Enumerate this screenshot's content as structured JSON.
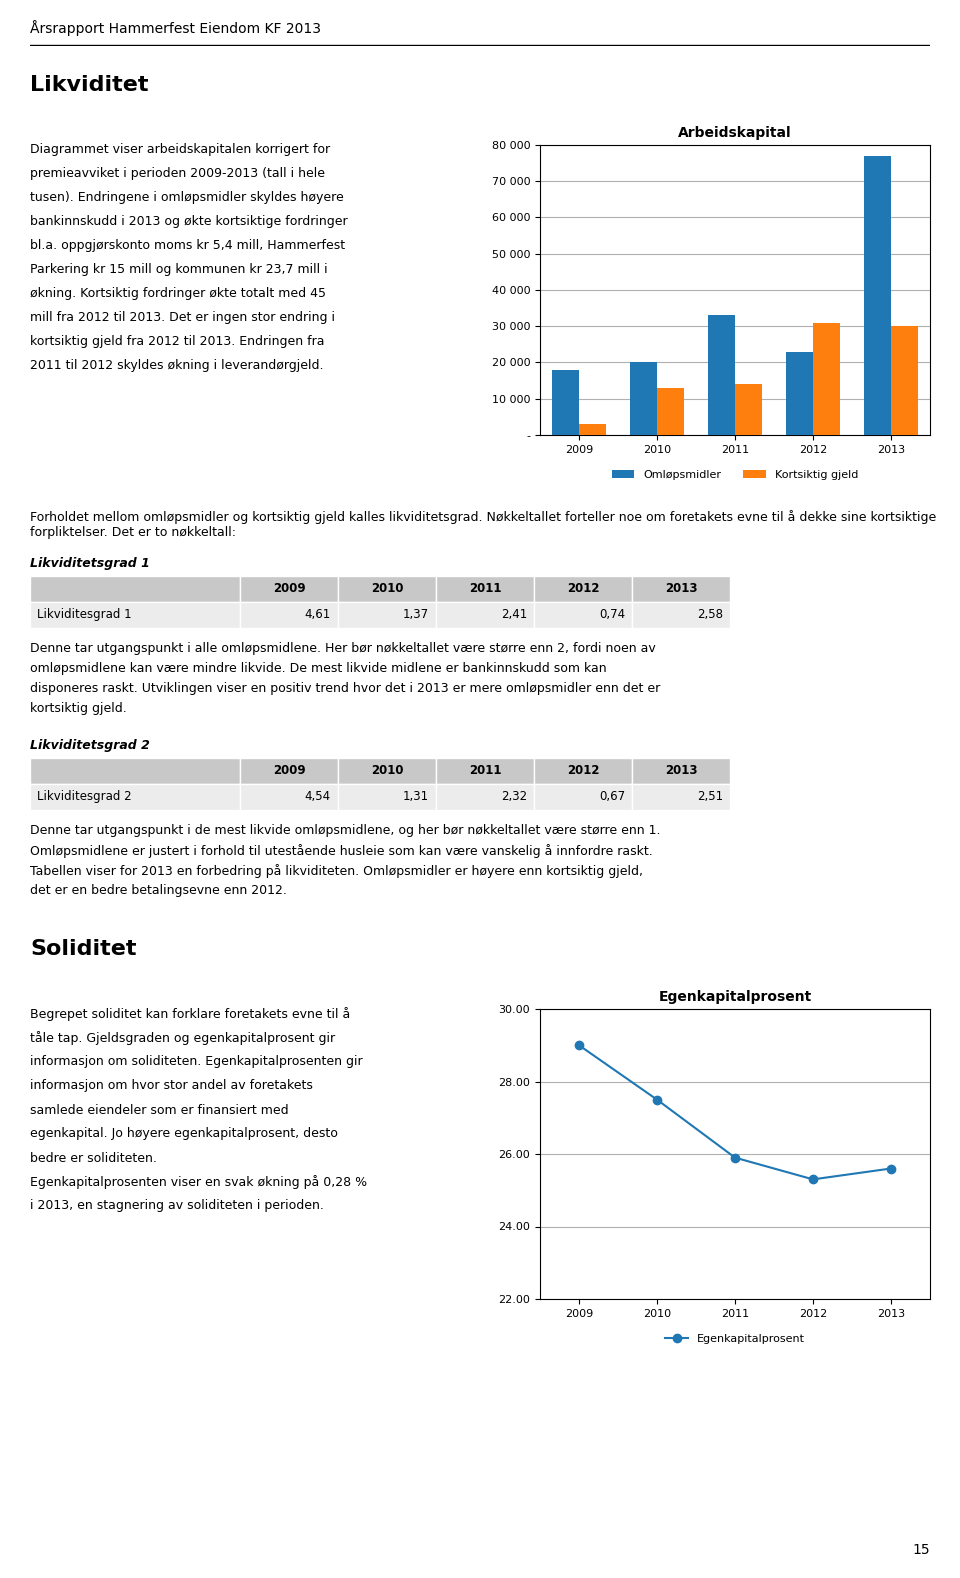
{
  "page_title": "Årsrapport Hammerfest Eiendom KF 2013",
  "page_number": "15",
  "chart_data": [
    {
      "type": "bar",
      "section": "Likviditet",
      "text": [
        "Diagrammet viser arbeidskapitalen korrigert for",
        "premieavviket i perioden 2009-2013 (tall i hele",
        "tusen). Endringene i omløpsmidler skyldes høyere",
        "bankinnskudd i 2013 og økte kortsiktige fordringer",
        "bl.a. oppgjørskonto moms kr 5,4 mill, Hammerfest",
        "Parkering kr 15 mill og kommunen kr 23,7 mill i",
        "økning. Kortsiktig fordringer økte totalt med 45",
        "mill fra 2012 til 2013. Det er ingen stor endring i",
        "kortsiktig gjeld fra 2012 til 2013. Endringen fra",
        "2011 til 2012 skyldes økning i leverandørgjeld."
      ],
      "title": "Arbeidskapital",
      "categories": [
        "2009",
        "2010",
        "2011",
        "2012",
        "2013"
      ],
      "series": [
        {
          "name": "Omløpsmidler",
          "values": [
            18000,
            20000,
            33000,
            23000,
            77000
          ]
        },
        {
          "name": "Kortsiktig gjeld",
          "values": [
            3000,
            13000,
            14000,
            31000,
            30000
          ]
        }
      ],
      "ylim": [
        0,
        80000
      ],
      "yticks": [
        {
          "value": 0,
          "label": "-"
        },
        {
          "value": 10000,
          "label": "10 000"
        },
        {
          "value": 20000,
          "label": "20 000"
        },
        {
          "value": 30000,
          "label": "30 000"
        },
        {
          "value": 40000,
          "label": "40 000"
        },
        {
          "value": 50000,
          "label": "50 000"
        },
        {
          "value": 60000,
          "label": "60 000"
        },
        {
          "value": 70000,
          "label": "70 000"
        },
        {
          "value": 80000,
          "label": "80 000"
        }
      ],
      "grid": true,
      "legend": "lower center",
      "annotations": [
        "Forholdet mellom omløpsmidler og kortsiktig gjeld kalles likviditetsgrad. Nøkkeltallet forteller noe om foretakets evne til å dekke sine kortsiktige forpliktelser. Det er to nøkkeltall:"
      ]
    },
    {
      "type": "table",
      "title": "Likviditetsgrad 1",
      "columns": [
        "",
        "2009",
        "2010",
        "2011",
        "2012",
        "2013"
      ],
      "rows": [
        [
          "Likviditesgrad 1",
          "4,61",
          "1,37",
          "2,41",
          "0,74",
          "2,58"
        ]
      ],
      "annotations": [
        "Denne tar utgangspunkt i alle omløpsmidlene. Her bør nøkkeltallet være større enn 2, fordi noen av",
        "omløpsmidlene kan være mindre likvide. De mest likvide midlene er bankinnskudd som kan",
        "disponeres raskt. Utviklingen viser en positiv trend hvor det i 2013 er mere omløpsmidler enn det er",
        "kortsiktig gjeld."
      ]
    },
    {
      "type": "table",
      "title": "Likviditetsgrad 2",
      "columns": [
        "",
        "2009",
        "2010",
        "2011",
        "2012",
        "2013"
      ],
      "rows": [
        [
          "Likviditesgrad 2",
          "4,54",
          "1,31",
          "2,32",
          "0,67",
          "2,51"
        ]
      ],
      "annotations": [
        "Denne tar utgangspunkt i de mest likvide omløpsmidlene, og her bør nøkkeltallet være større enn 1.",
        "Omløpsmidlene er justert i forhold til utestående husleie som kan være vanskelig å innfordre raskt.",
        "Tabellen viser for 2013 en forbedring på likviditeten. Omløpsmidler er høyere enn kortsiktig gjeld,",
        "det er en bedre betalingsevne enn 2012."
      ]
    },
    {
      "type": "line",
      "section": "Soliditet",
      "text": [
        "Begrepet soliditet kan forklare foretakets evne til å",
        "tåle tap. Gjeldsgraden og egenkapitalprosent gir",
        "informasjon om soliditeten. Egenkapitalprosenten gir",
        "informasjon om hvor stor andel av foretakets",
        "samlede eiendeler som er finansiert med",
        "egenkapital. Jo høyere egenkapitalprosent, desto",
        "bedre er soliditeten.",
        "Egenkapitalprosenten viser en svak økning på 0,28 %",
        "i 2013, en stagnering av soliditeten i perioden."
      ],
      "title": "Egenkapitalprosent",
      "categories": [
        "2009",
        "2010",
        "2011",
        "2012",
        "2013"
      ],
      "series": [
        {
          "name": "Egenkapitalprosent",
          "values": [
            29.0,
            27.5,
            25.9,
            25.3,
            25.6
          ],
          "marker": "o"
        }
      ],
      "ylim": [
        22.0,
        30.0
      ],
      "yticks": [
        {
          "value": 22.0,
          "label": "22.00"
        },
        {
          "value": 24.0,
          "label": "24.00"
        },
        {
          "value": 26.0,
          "label": "26.00"
        },
        {
          "value": 28.0,
          "label": "28.00"
        },
        {
          "value": 30.0,
          "label": "30.00"
        }
      ],
      "grid": true,
      "legend": "lower center"
    }
  ]
}
